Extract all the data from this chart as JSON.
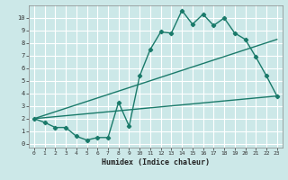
{
  "title": "",
  "xlabel": "Humidex (Indice chaleur)",
  "bg_color": "#cce8e8",
  "line_color": "#1a7a6a",
  "grid_color": "#ffffff",
  "xlim": [
    -0.5,
    23.5
  ],
  "ylim": [
    -0.3,
    11.0
  ],
  "xticks": [
    0,
    1,
    2,
    3,
    4,
    5,
    6,
    7,
    8,
    9,
    10,
    11,
    12,
    13,
    14,
    15,
    16,
    17,
    18,
    19,
    20,
    21,
    22,
    23
  ],
  "yticks": [
    0,
    1,
    2,
    3,
    4,
    5,
    6,
    7,
    8,
    9,
    10
  ],
  "line1_x": [
    0,
    1,
    2,
    3,
    4,
    5,
    6,
    7,
    8,
    9,
    10,
    11,
    12,
    13,
    14,
    15,
    16,
    17,
    18,
    19,
    20,
    21,
    22,
    23
  ],
  "line1_y": [
    2.0,
    1.7,
    1.3,
    1.3,
    0.6,
    0.3,
    0.5,
    0.5,
    3.3,
    1.4,
    5.4,
    7.5,
    8.9,
    8.8,
    10.6,
    9.5,
    10.3,
    9.4,
    10.0,
    8.8,
    8.3,
    6.9,
    5.4,
    3.8
  ],
  "line2_x": [
    0,
    23
  ],
  "line2_y": [
    2.0,
    8.3
  ],
  "line3_x": [
    0,
    23
  ],
  "line3_y": [
    2.0,
    3.8
  ]
}
